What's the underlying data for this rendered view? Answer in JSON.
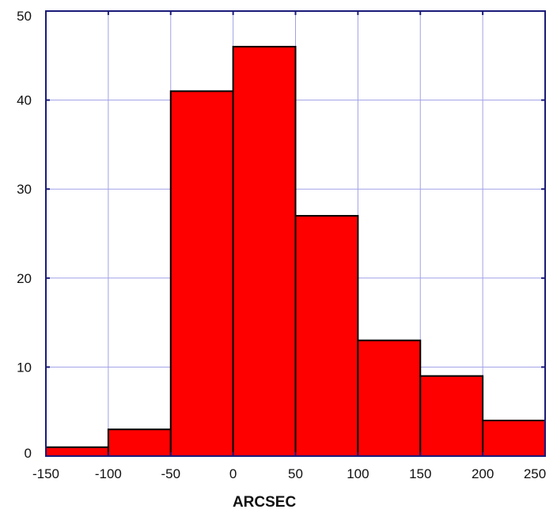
{
  "chart_data": {
    "type": "bar",
    "subtype": "histogram",
    "bins": [
      {
        "x0": -150,
        "x1": -100,
        "count": 1
      },
      {
        "x0": -100,
        "x1": -50,
        "count": 3
      },
      {
        "x0": -50,
        "x1": 0,
        "count": 41
      },
      {
        "x0": 0,
        "x1": 50,
        "count": 46
      },
      {
        "x0": 50,
        "x1": 100,
        "count": 27
      },
      {
        "x0": 100,
        "x1": 150,
        "count": 13
      },
      {
        "x0": 150,
        "x1": 200,
        "count": 9
      },
      {
        "x0": 200,
        "x1": 250,
        "count": 4
      }
    ],
    "xlim": [
      -150,
      250
    ],
    "ylim": [
      0,
      50
    ],
    "x_ticks": [
      -150,
      -100,
      -50,
      0,
      50,
      100,
      150,
      200,
      250
    ],
    "y_ticks": [
      0,
      10,
      20,
      30,
      40,
      50
    ],
    "title": "",
    "xlabel": "ARCSEC",
    "ylabel": "",
    "grid": true,
    "colors": {
      "bar_fill": "#ff0000",
      "bar_stroke": "#000000",
      "grid": "#a0a0e8",
      "frame": "#1a1a7a",
      "text": "#111111"
    }
  }
}
